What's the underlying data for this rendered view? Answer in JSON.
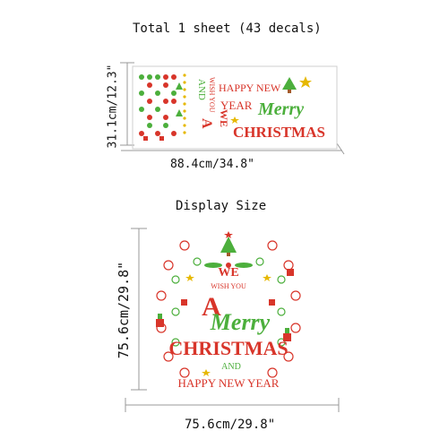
{
  "sheet": {
    "caption": "Total 1 sheet (43 decals)",
    "width_label": "88.4cm/34.8\"",
    "height_label": "31.1cm/12.3\"",
    "text": {
      "happy_new": "HAPPY NEW",
      "year": "YEAR",
      "wish_you": "WISH YOU",
      "and": "AND",
      "we": "WE",
      "a": "A",
      "merry": "Merry",
      "christmas": "CHRISTMAS"
    }
  },
  "display": {
    "caption": "Display Size",
    "width_label": "75.6cm/29.8\"",
    "height_label": "75.6cm/29.8\"",
    "text": {
      "we": "WE",
      "wish_you": "WISH YOU",
      "a": "A",
      "merry": "Merry",
      "christmas": "CHRISTMAS",
      "and": "AND",
      "happy_new_year": "HAPPY NEW YEAR"
    }
  },
  "colors": {
    "red": "#d8352a",
    "green": "#4caf3c",
    "gold": "#e6b800",
    "pink": "#e57373",
    "line": "#999999"
  },
  "icons": [
    "snowflake-icon",
    "gift-box-icon",
    "christmas-tree-icon",
    "star-icon",
    "holly-icon"
  ]
}
